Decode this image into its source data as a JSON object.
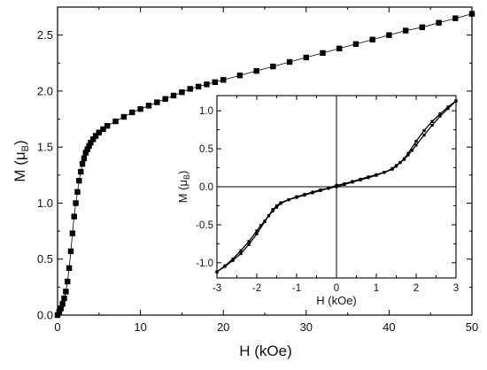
{
  "chart_data": [
    {
      "type": "scatter",
      "panel": "main",
      "xlabel": "H (kOe)",
      "ylabel_main": "M (",
      "ylabel_sub": "B",
      "ylabel_greek": "μ",
      "ylabel_close": ")",
      "xlim": [
        0,
        50
      ],
      "ylim": [
        0,
        2.75
      ],
      "xticks": [
        "0",
        "10",
        "20",
        "30",
        "40",
        "50"
      ],
      "yticks": [
        "0.0",
        "0.5",
        "1.0",
        "1.5",
        "2.0",
        "2.5"
      ],
      "marker": "filled-square",
      "line": "thin-connecting",
      "series": [
        {
          "x": [
            0.0,
            0.2,
            0.4,
            0.6,
            0.8,
            1.0,
            1.2,
            1.4,
            1.6,
            1.8,
            2.0,
            2.2,
            2.4,
            2.6,
            2.8,
            3.0,
            3.2,
            3.4,
            3.6,
            3.8,
            4.0,
            4.3,
            4.6,
            5.0,
            5.5,
            6.0,
            7.0,
            8.0,
            9.0,
            10.0,
            11.0,
            12.0,
            13.0,
            14.0,
            15.0,
            16.0,
            17.0,
            18.0,
            19.0,
            20.0,
            22.0,
            24.0,
            26.0,
            28.0,
            30.0,
            32.0,
            34.0,
            36.0,
            38.0,
            40.0,
            42.0,
            44.0,
            46.0,
            48.0,
            50.0
          ],
          "y": [
            0.0,
            0.03,
            0.06,
            0.1,
            0.15,
            0.21,
            0.3,
            0.42,
            0.57,
            0.73,
            0.88,
            1.0,
            1.1,
            1.2,
            1.28,
            1.35,
            1.4,
            1.45,
            1.48,
            1.51,
            1.54,
            1.57,
            1.6,
            1.63,
            1.66,
            1.69,
            1.73,
            1.77,
            1.81,
            1.84,
            1.87,
            1.9,
            1.93,
            1.96,
            1.99,
            2.02,
            2.04,
            2.06,
            2.08,
            2.1,
            2.14,
            2.18,
            2.22,
            2.26,
            2.3,
            2.34,
            2.38,
            2.42,
            2.46,
            2.5,
            2.54,
            2.57,
            2.61,
            2.65,
            2.69
          ]
        }
      ]
    },
    {
      "type": "line",
      "panel": "inset",
      "xlabel": "H (kOe)",
      "ylabel_main": "M (",
      "ylabel_sub": "B",
      "ylabel_greek": "μ",
      "ylabel_close": ")",
      "xlim": [
        -3,
        3
      ],
      "ylim": [
        -1.2,
        1.2
      ],
      "xticks": [
        "-3",
        "-2",
        "-1",
        "0",
        "1",
        "2",
        "3"
      ],
      "yticks": [
        "-1.0",
        "-0.5",
        "0.0",
        "0.5",
        "1.0"
      ],
      "marker": "small-dot",
      "series": [
        {
          "x": [
            3.0,
            2.8,
            2.6,
            2.4,
            2.2,
            2.0,
            1.9,
            1.8,
            1.7,
            1.6,
            1.5,
            1.4,
            1.2,
            1.0,
            0.8,
            0.6,
            0.4,
            0.2,
            0.0,
            -0.2,
            -0.4,
            -0.6,
            -0.8,
            -1.0,
            -1.2,
            -1.4,
            -1.5,
            -1.6,
            -1.7,
            -1.8,
            -2.0,
            -2.2,
            -2.4,
            -2.6,
            -2.8,
            -3.0
          ],
          "y": [
            1.13,
            1.03,
            0.93,
            0.81,
            0.68,
            0.55,
            0.48,
            0.42,
            0.36,
            0.32,
            0.28,
            0.24,
            0.19,
            0.15,
            0.12,
            0.09,
            0.06,
            0.03,
            0.0,
            -0.02,
            -0.05,
            -0.08,
            -0.11,
            -0.14,
            -0.17,
            -0.21,
            -0.25,
            -0.3,
            -0.38,
            -0.46,
            -0.62,
            -0.76,
            -0.88,
            -0.97,
            -1.05,
            -1.12
          ]
        },
        {
          "x": [
            -3.0,
            -2.8,
            -2.6,
            -2.4,
            -2.2,
            -2.0,
            -1.9,
            -1.8,
            -1.7,
            -1.6,
            -1.5,
            -1.4,
            -1.2,
            -1.0,
            -0.8,
            -0.6,
            -0.4,
            -0.2,
            0.0,
            0.2,
            0.4,
            0.6,
            0.8,
            1.0,
            1.2,
            1.4,
            1.5,
            1.6,
            1.7,
            1.8,
            2.0,
            2.2,
            2.4,
            2.6,
            2.8,
            3.0
          ],
          "y": [
            -1.12,
            -1.04,
            -0.95,
            -0.84,
            -0.72,
            -0.58,
            -0.51,
            -0.45,
            -0.38,
            -0.32,
            -0.27,
            -0.22,
            -0.17,
            -0.13,
            -0.1,
            -0.07,
            -0.04,
            -0.02,
            0.02,
            0.04,
            0.07,
            0.1,
            0.13,
            0.16,
            0.19,
            0.23,
            0.27,
            0.32,
            0.37,
            0.44,
            0.6,
            0.74,
            0.86,
            0.96,
            1.05,
            1.13
          ]
        }
      ]
    }
  ]
}
